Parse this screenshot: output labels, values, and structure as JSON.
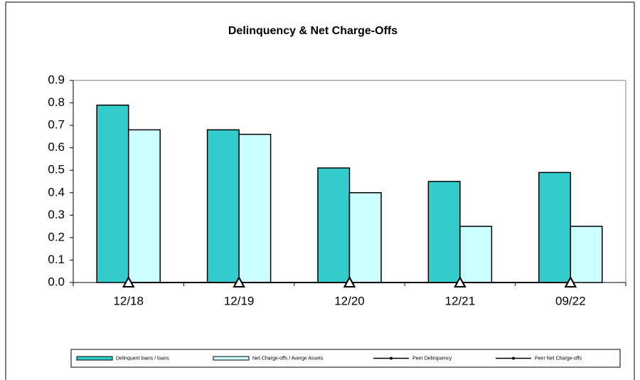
{
  "chart_data": {
    "type": "bar",
    "title": "Delinquency & Net Charge-Offs",
    "categories": [
      "12/18",
      "12/19",
      "12/20",
      "12/21",
      "09/22"
    ],
    "series": [
      {
        "name": "Delinquent loans / loans",
        "color": "#33cccc",
        "values": [
          0.79,
          0.68,
          0.51,
          0.45,
          0.49
        ]
      },
      {
        "name": "Net Charge-offs / Averge Assets",
        "color": "#ccffff",
        "values": [
          0.68,
          0.66,
          0.4,
          0.25,
          0.25
        ]
      },
      {
        "name": "Peer Delinquency",
        "type": "line",
        "color": "#000000",
        "values": [
          0,
          0,
          0,
          0,
          0
        ]
      },
      {
        "name": "Peer Net Charge-offs",
        "type": "line",
        "color": "#000000",
        "values": [
          0,
          0,
          0,
          0,
          0
        ]
      }
    ],
    "ylim": [
      0,
      0.9
    ],
    "yticks": [
      {
        "value": 0,
        "label": "0.0"
      },
      0.1,
      0.2,
      0.3,
      0.4,
      0.5,
      0.6,
      0.7,
      0.8,
      0.9
    ],
    "legend": "bottom"
  }
}
